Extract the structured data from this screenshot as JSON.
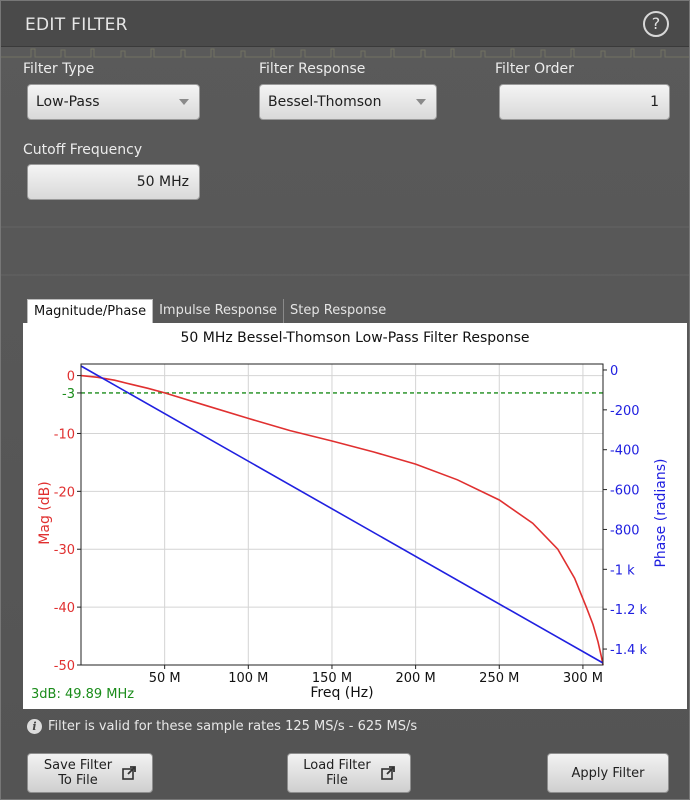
{
  "dialog": {
    "title": "EDIT FILTER",
    "help_symbol": "?"
  },
  "fields": {
    "filter_type": {
      "label": "Filter Type",
      "value": "Low-Pass"
    },
    "filter_response": {
      "label": "Filter Response",
      "value": "Bessel-Thomson"
    },
    "filter_order": {
      "label": "Filter Order",
      "value": "1"
    },
    "cutoff_frequency": {
      "label": "Cutoff Frequency",
      "value": "50 MHz"
    }
  },
  "tabs": [
    {
      "label": "Magnitude/Phase",
      "active": true
    },
    {
      "label": "Impulse Response",
      "active": false
    },
    {
      "label": "Step Response",
      "active": false
    }
  ],
  "chart_data": {
    "type": "line",
    "title": "50 MHz Bessel-Thomson Low-Pass Filter Response",
    "xlabel": "Freq (Hz)",
    "ylabel_left": "Mag (dB)",
    "ylabel_right": "Phase (radians)",
    "xlim": [
      0,
      312
    ],
    "ylim_left": [
      -50,
      2
    ],
    "ylim_right": [
      -1480,
      30
    ],
    "x_ticks": [
      {
        "value": 50,
        "label": "50 M"
      },
      {
        "value": 100,
        "label": "100 M"
      },
      {
        "value": 150,
        "label": "150 M"
      },
      {
        "value": 200,
        "label": "200 M"
      },
      {
        "value": 250,
        "label": "250 M"
      },
      {
        "value": 300,
        "label": "300 M"
      }
    ],
    "y_ticks_left": [
      {
        "value": 0,
        "label": "0"
      },
      {
        "value": -3,
        "label": "-3"
      },
      {
        "value": -10,
        "label": "-10"
      },
      {
        "value": -20,
        "label": "-20"
      },
      {
        "value": -30,
        "label": "-30"
      },
      {
        "value": -40,
        "label": "-40"
      },
      {
        "value": -50,
        "label": "-50"
      }
    ],
    "y_ticks_right": [
      {
        "value": 0,
        "label": "0"
      },
      {
        "value": -200,
        "label": "-200"
      },
      {
        "value": -400,
        "label": "-400"
      },
      {
        "value": -600,
        "label": "-600"
      },
      {
        "value": -800,
        "label": "-800"
      },
      {
        "value": -1000,
        "label": "-1 k"
      },
      {
        "value": -1200,
        "label": "-1.2 k"
      },
      {
        "value": -1400,
        "label": "-1.4 k"
      }
    ],
    "reference_line": {
      "value": -3,
      "color": "#1a8c1a"
    },
    "annotation": "3dB: 49.89 MHz",
    "series": [
      {
        "axis": "left",
        "color": "#e03030",
        "x": [
          0,
          10,
          20,
          30,
          40,
          50,
          75,
          100,
          125,
          150,
          175,
          200,
          225,
          250,
          270,
          285,
          295,
          302,
          306,
          309,
          311,
          312
        ],
        "y": [
          0,
          -0.3,
          -0.8,
          -1.5,
          -2.2,
          -3,
          -5.2,
          -7.4,
          -9.5,
          -11.3,
          -13.2,
          -15.3,
          -18,
          -21.5,
          -25.5,
          -30,
          -35,
          -40,
          -43,
          -46,
          -48.5,
          -50
        ]
      },
      {
        "axis": "right",
        "color": "#2020e0",
        "x": [
          0,
          312
        ],
        "y": [
          20,
          -1470
        ]
      }
    ]
  },
  "info": {
    "icon": "i",
    "text": "Filter is valid for these sample rates 125 MS/s - 625 MS/s"
  },
  "buttons": {
    "save": "Save Filter\nTo File",
    "load": "Load Filter\nFile",
    "apply": "Apply Filter"
  },
  "colors": {
    "mag": "#e03030",
    "phase": "#2020e0",
    "marker": "#1a8c1a"
  }
}
